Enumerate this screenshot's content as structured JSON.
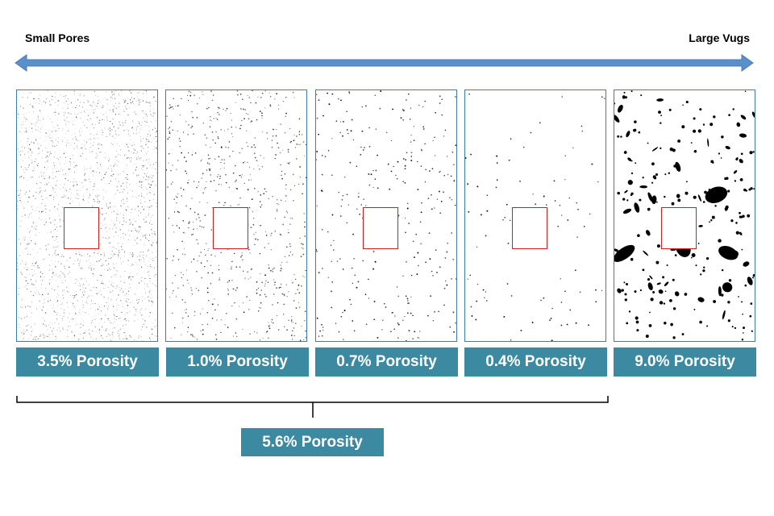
{
  "scale": {
    "left_label": "Small Pores",
    "right_label": "Large Vugs",
    "arrow_color": "#5b8fc9"
  },
  "panels": [
    {
      "porosity_label": "3.5% Porosity",
      "texture": "dense-fine-pores"
    },
    {
      "porosity_label": "1.0% Porosity",
      "texture": "scattered-fine-pores"
    },
    {
      "porosity_label": "0.7% Porosity",
      "texture": "sparse-pores"
    },
    {
      "porosity_label": "0.4% Porosity",
      "texture": "very-sparse-pores"
    },
    {
      "porosity_label": "9.0% Porosity",
      "texture": "large-vugs"
    }
  ],
  "combined": {
    "porosity_label": "5.6% Porosity"
  },
  "colors": {
    "badge": "#3b8aa1",
    "panel_border": "#3a7fa5",
    "roi_box": "#cc1f1f"
  }
}
